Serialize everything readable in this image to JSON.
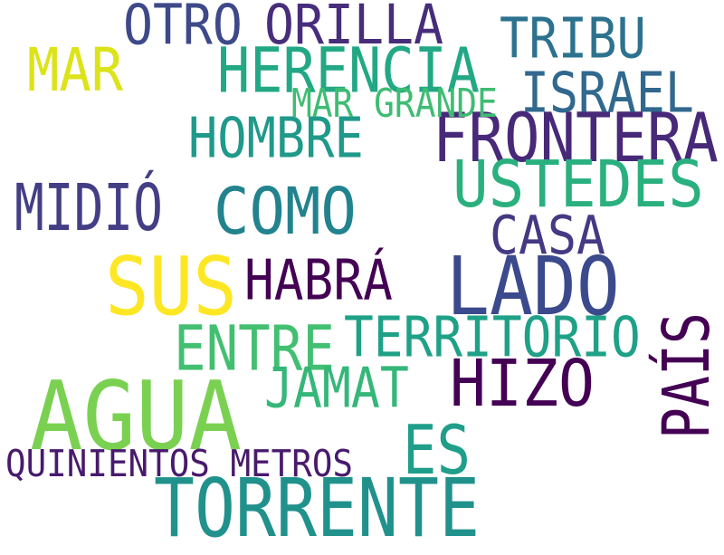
{
  "words": [
    {
      "text": "AGUA",
      "color": "#7ad151"
    },
    {
      "text": "TORRENTE",
      "color": "#21918c"
    },
    {
      "text": "LADO",
      "color": "#3b4a8c"
    },
    {
      "text": "SUS",
      "color": "#fde725"
    },
    {
      "text": "FRONTERA",
      "color": "#482878"
    },
    {
      "text": "HERENCIA",
      "color": "#22a884"
    },
    {
      "text": "USTEDES",
      "color": "#2ab07f"
    },
    {
      "text": "COMO",
      "color": "#22838e"
    },
    {
      "text": "HIZO",
      "color": "#440154"
    },
    {
      "text": "PAÍS",
      "color": "#440154"
    },
    {
      "text": "ES",
      "color": "#1f9e89"
    },
    {
      "text": "ENTRE",
      "color": "#43bf71"
    },
    {
      "text": "TERRITORIO",
      "color": "#1fa187"
    },
    {
      "text": "HOMBRE",
      "color": "#1f998a"
    },
    {
      "text": "HABRÁ",
      "color": "#440154"
    },
    {
      "text": "ORILLA",
      "color": "#472d7b"
    },
    {
      "text": "ISRAEL",
      "color": "#31688e"
    },
    {
      "text": "TRIBU",
      "color": "#2c728e"
    },
    {
      "text": "CASA",
      "color": "#443983"
    },
    {
      "text": "MIDIÓ",
      "color": "#433e85"
    },
    {
      "text": "JAMAT",
      "color": "#35b779"
    },
    {
      "text": "OTRO",
      "color": "#3e4989"
    },
    {
      "text": "MAR",
      "color": "#dce319"
    },
    {
      "text": "QUINIENTOS METROS",
      "color": "#481a6c"
    },
    {
      "text": "MAR GRANDE",
      "color": "#3fbc73"
    }
  ]
}
